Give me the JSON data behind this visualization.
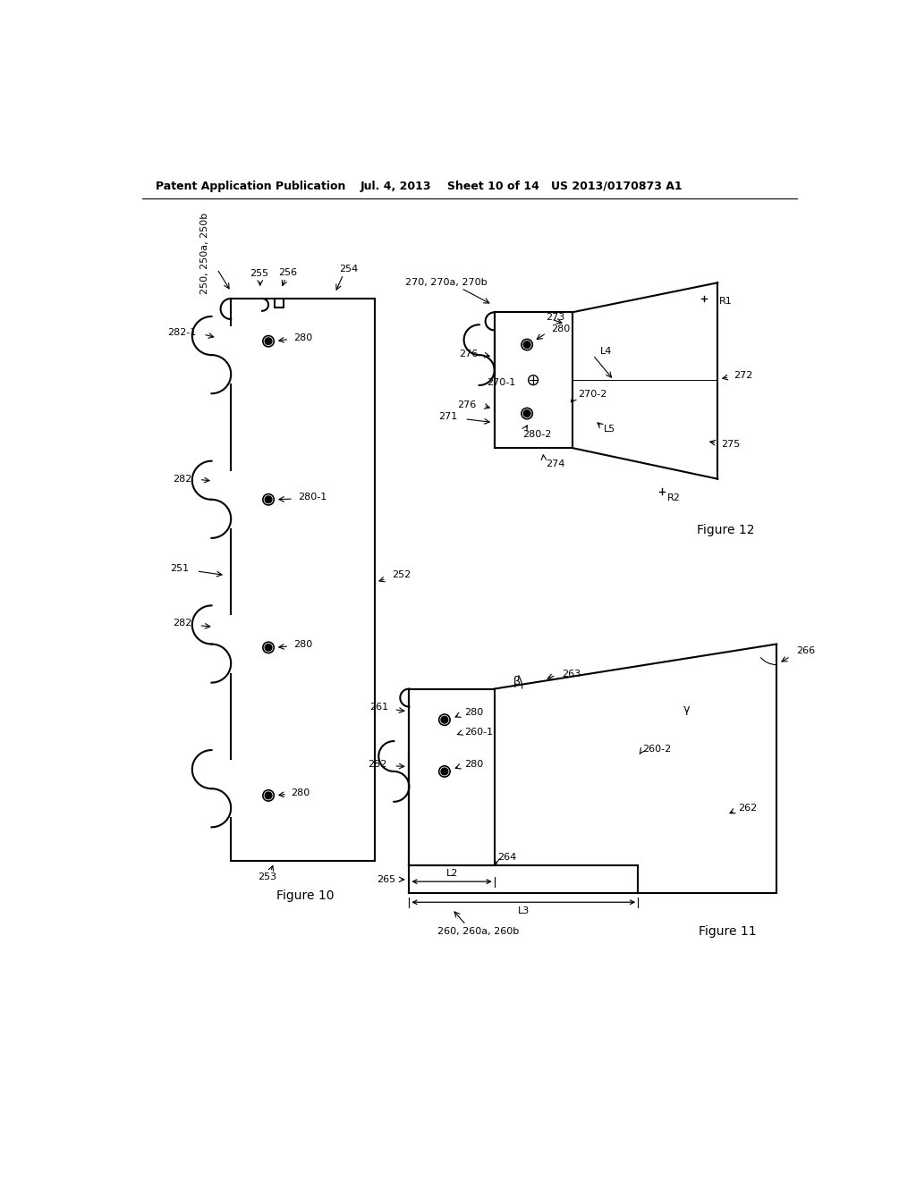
{
  "background_color": "#ffffff",
  "header_text": "Patent Application Publication",
  "header_date": "Jul. 4, 2013",
  "header_sheet": "Sheet 10 of 14",
  "header_patent": "US 2013/0170873 A1",
  "fig10_label": "Figure 10",
  "fig11_label": "Figure 11",
  "fig12_label": "Figure 12"
}
